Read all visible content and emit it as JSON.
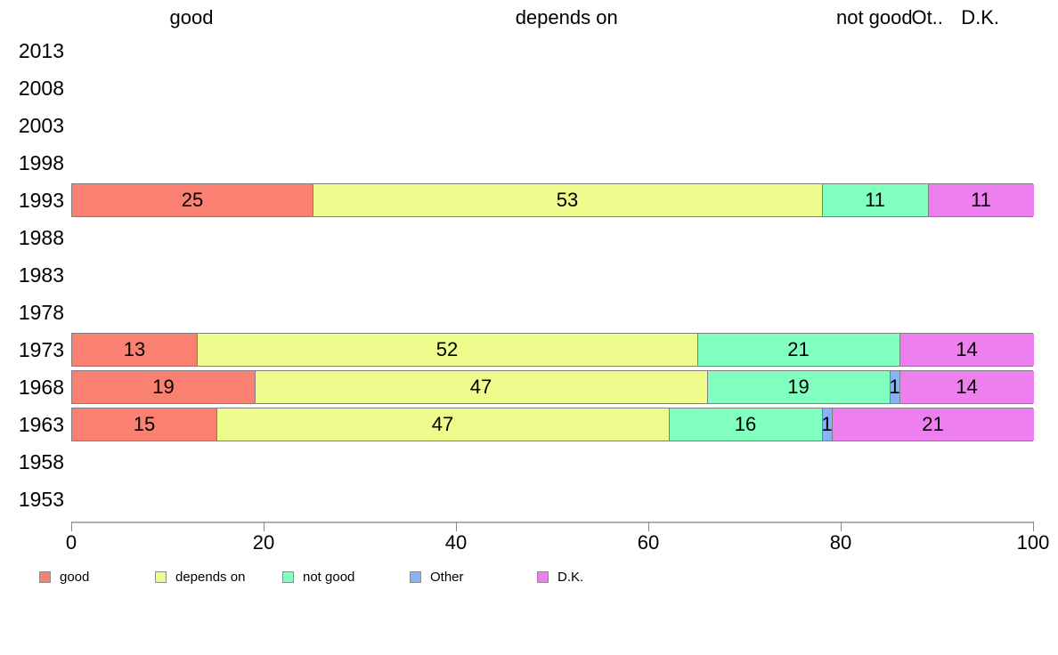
{
  "chart_data": {
    "type": "bar",
    "orientation": "horizontal-stacked",
    "title": "",
    "xlabel": "",
    "ylabel": "",
    "xlim": [
      0,
      100
    ],
    "x_ticks": [
      0,
      20,
      40,
      60,
      80,
      100
    ],
    "grid": false,
    "categories": [
      "2013",
      "2008",
      "2003",
      "1998",
      "1993",
      "1988",
      "1983",
      "1978",
      "1973",
      "1968",
      "1963",
      "1958",
      "1953"
    ],
    "series": [
      {
        "name": "good",
        "color": "#FA8072",
        "values": [
          null,
          null,
          null,
          null,
          25,
          null,
          null,
          null,
          13,
          19,
          15,
          null,
          null
        ]
      },
      {
        "name": "depends on",
        "color": "#EDFC8D",
        "values": [
          null,
          null,
          null,
          null,
          53,
          null,
          null,
          null,
          52,
          47,
          47,
          null,
          null
        ]
      },
      {
        "name": "not good",
        "color": "#80FFBF",
        "values": [
          null,
          null,
          null,
          null,
          11,
          null,
          null,
          null,
          21,
          19,
          16,
          null,
          null
        ]
      },
      {
        "name": "Other",
        "color": "#85B2F9",
        "values": [
          null,
          null,
          null,
          null,
          null,
          null,
          null,
          null,
          null,
          1,
          1,
          null,
          null
        ]
      },
      {
        "name": "D.K.",
        "color": "#EE7FEE",
        "values": [
          null,
          null,
          null,
          null,
          11,
          null,
          null,
          null,
          14,
          14,
          21,
          null,
          null
        ]
      }
    ],
    "header_labels": [
      "good",
      "depends on",
      "not good",
      "Ot..",
      "D.K."
    ],
    "legend": {
      "position": "bottom",
      "entries": [
        {
          "label": "good",
          "color": "#FA8072"
        },
        {
          "label": "depends on",
          "color": "#EDFC8D"
        },
        {
          "label": "not good",
          "color": "#80FFBF"
        },
        {
          "label": "Other",
          "color": "#85B2F9"
        },
        {
          "label": "D.K.",
          "color": "#EE7FEE"
        }
      ]
    }
  }
}
